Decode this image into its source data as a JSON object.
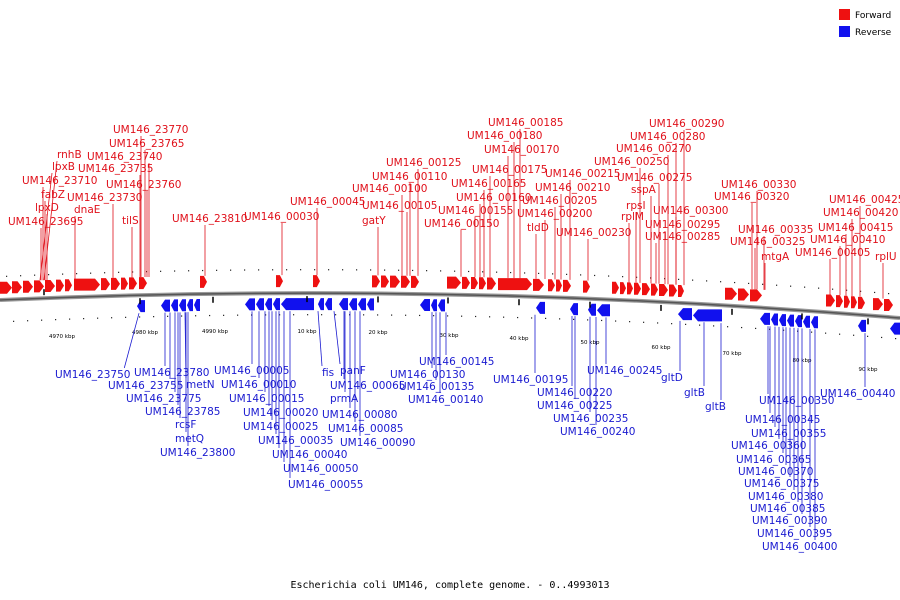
{
  "caption": "Escherichia coli UM146, complete genome. - 0..4993013",
  "legend": {
    "forward": {
      "label": "Forward",
      "color": "#ee1111"
    },
    "reverse": {
      "label": "Reverse",
      "color": "#1111ee"
    }
  },
  "ticks": [
    "4970 kbp",
    "4980 kbp",
    "4990 kbp",
    "10 kbp",
    "20 kbp",
    "30 kbp",
    "40 kbp",
    "50 kbp",
    "60 kbp",
    "70 kbp",
    "80 kbp",
    "90 kbp"
  ],
  "forward_labels": [
    "UM146_23770",
    "UM146_23765",
    "UM146_23740",
    "rnhB",
    "UM146_23735",
    "lpxB",
    "UM146_23710",
    "UM146_23760",
    "fabZ",
    "UM146_23730",
    "lpxD",
    "dnaE",
    "UM146_23695",
    "tilS",
    "UM146_23810",
    "UM146_00030",
    "UM146_00045",
    "UM146_00125",
    "UM146_00110",
    "UM146_00100",
    "UM146_00105",
    "gatY",
    "UM146_00185",
    "UM146_00180",
    "UM146_00170",
    "UM146_00175",
    "UM146_00165",
    "UM146_00160",
    "UM146_00155",
    "UM146_00150",
    "UM146_00215",
    "UM146_00210",
    "UM146_00205",
    "UM146_00200",
    "tldD",
    "UM146_00230",
    "UM146_00290",
    "UM146_00280",
    "UM146_00270",
    "UM146_00250",
    "UM146_00275",
    "sspA",
    "rpsI",
    "rplM",
    "UM146_00300",
    "UM146_00295",
    "UM146_00285",
    "UM146_00330",
    "UM146_00320",
    "UM146_00335",
    "UM146_00325",
    "mtgA",
    "UM146_00425",
    "UM146_00420",
    "UM146_00415",
    "UM146_00410",
    "UM146_00405",
    "rplU"
  ],
  "reverse_labels": [
    "UM146_23750",
    "UM146_23780",
    "UM146_23755",
    "metN",
    "UM146_23775",
    "UM146_23785",
    "rcsF",
    "metQ",
    "UM146_23800",
    "UM146_00005",
    "UM146_00010",
    "UM146_00015",
    "UM146_00020",
    "UM146_00025",
    "UM146_00035",
    "UM146_00040",
    "UM146_00050",
    "UM146_00055",
    "fis",
    "panF",
    "UM146_00065",
    "prmA",
    "UM146_00080",
    "UM146_00085",
    "UM146_00090",
    "UM146_00145",
    "UM146_00130",
    "UM146_00135",
    "UM146_00140",
    "UM146_00195",
    "UM146_00220",
    "UM146_00225",
    "UM146_00235",
    "UM146_00240",
    "UM146_00245",
    "gltD",
    "gltB",
    "gltB",
    "UM146_00350",
    "UM146_00345",
    "UM146_00355",
    "UM146_00360",
    "UM146_00365",
    "UM146_00370",
    "UM146_00375",
    "UM146_00380",
    "UM146_00385",
    "UM146_00390",
    "UM146_00395",
    "UM146_00400",
    "UM146_00440"
  ]
}
